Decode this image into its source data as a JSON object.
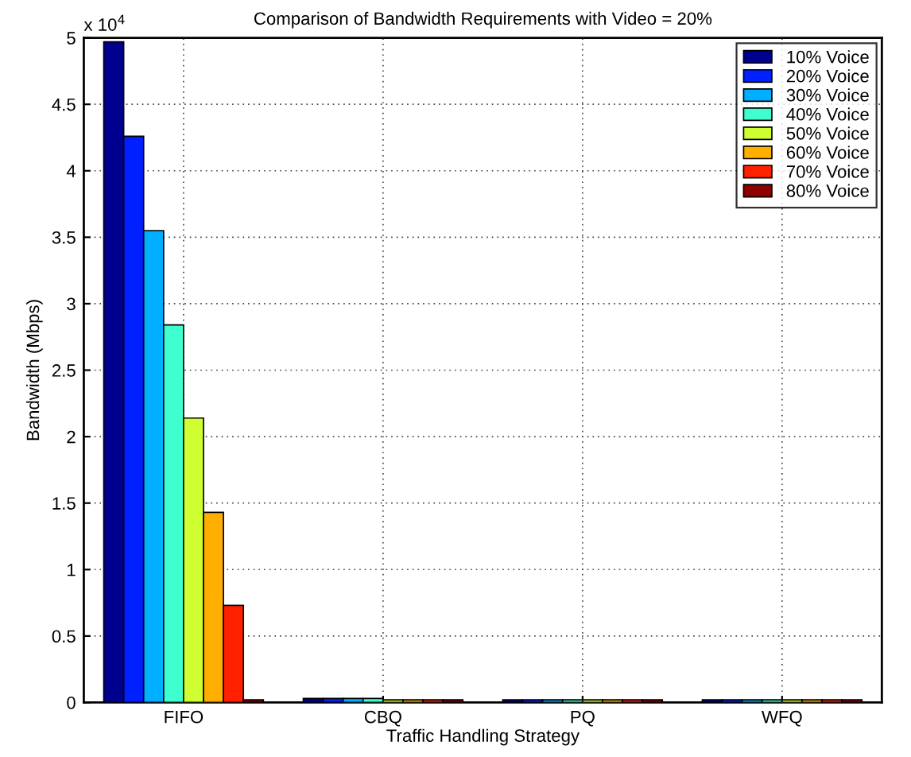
{
  "chart_data": {
    "type": "bar",
    "title": "Comparison of Bandwidth Requirements with Video = 20%",
    "xlabel": "Traffic Handling Strategy",
    "ylabel": "Bandwidth (Mbps)",
    "categories": [
      "FIFO",
      "CBQ",
      "PQ",
      "WFQ"
    ],
    "series": [
      {
        "name": "10% Voice",
        "color": "#00008f",
        "values": [
          4.97,
          0.03,
          0.02,
          0.02
        ]
      },
      {
        "name": "20% Voice",
        "color": "#0020ff",
        "values": [
          4.26,
          0.03,
          0.02,
          0.02
        ]
      },
      {
        "name": "30% Voice",
        "color": "#00afff",
        "values": [
          3.55,
          0.03,
          0.02,
          0.02
        ]
      },
      {
        "name": "40% Voice",
        "color": "#40ffcf",
        "values": [
          2.84,
          0.03,
          0.02,
          0.02
        ]
      },
      {
        "name": "50% Voice",
        "color": "#cfff30",
        "values": [
          2.14,
          0.02,
          0.02,
          0.02
        ]
      },
      {
        "name": "60% Voice",
        "color": "#ffaf00",
        "values": [
          1.43,
          0.02,
          0.02,
          0.02
        ]
      },
      {
        "name": "70% Voice",
        "color": "#ff2000",
        "values": [
          0.73,
          0.02,
          0.02,
          0.02
        ]
      },
      {
        "name": "80% Voice",
        "color": "#8f0000",
        "values": [
          0.02,
          0.02,
          0.02,
          0.02
        ]
      }
    ],
    "ylim": [
      0,
      5
    ],
    "yticks": [
      0,
      0.5,
      1,
      1.5,
      2,
      2.5,
      3,
      3.5,
      4,
      4.5,
      5
    ],
    "annotations": [
      "x 10$^{4}$"
    ],
    "grid": true,
    "legend": "top right"
  }
}
